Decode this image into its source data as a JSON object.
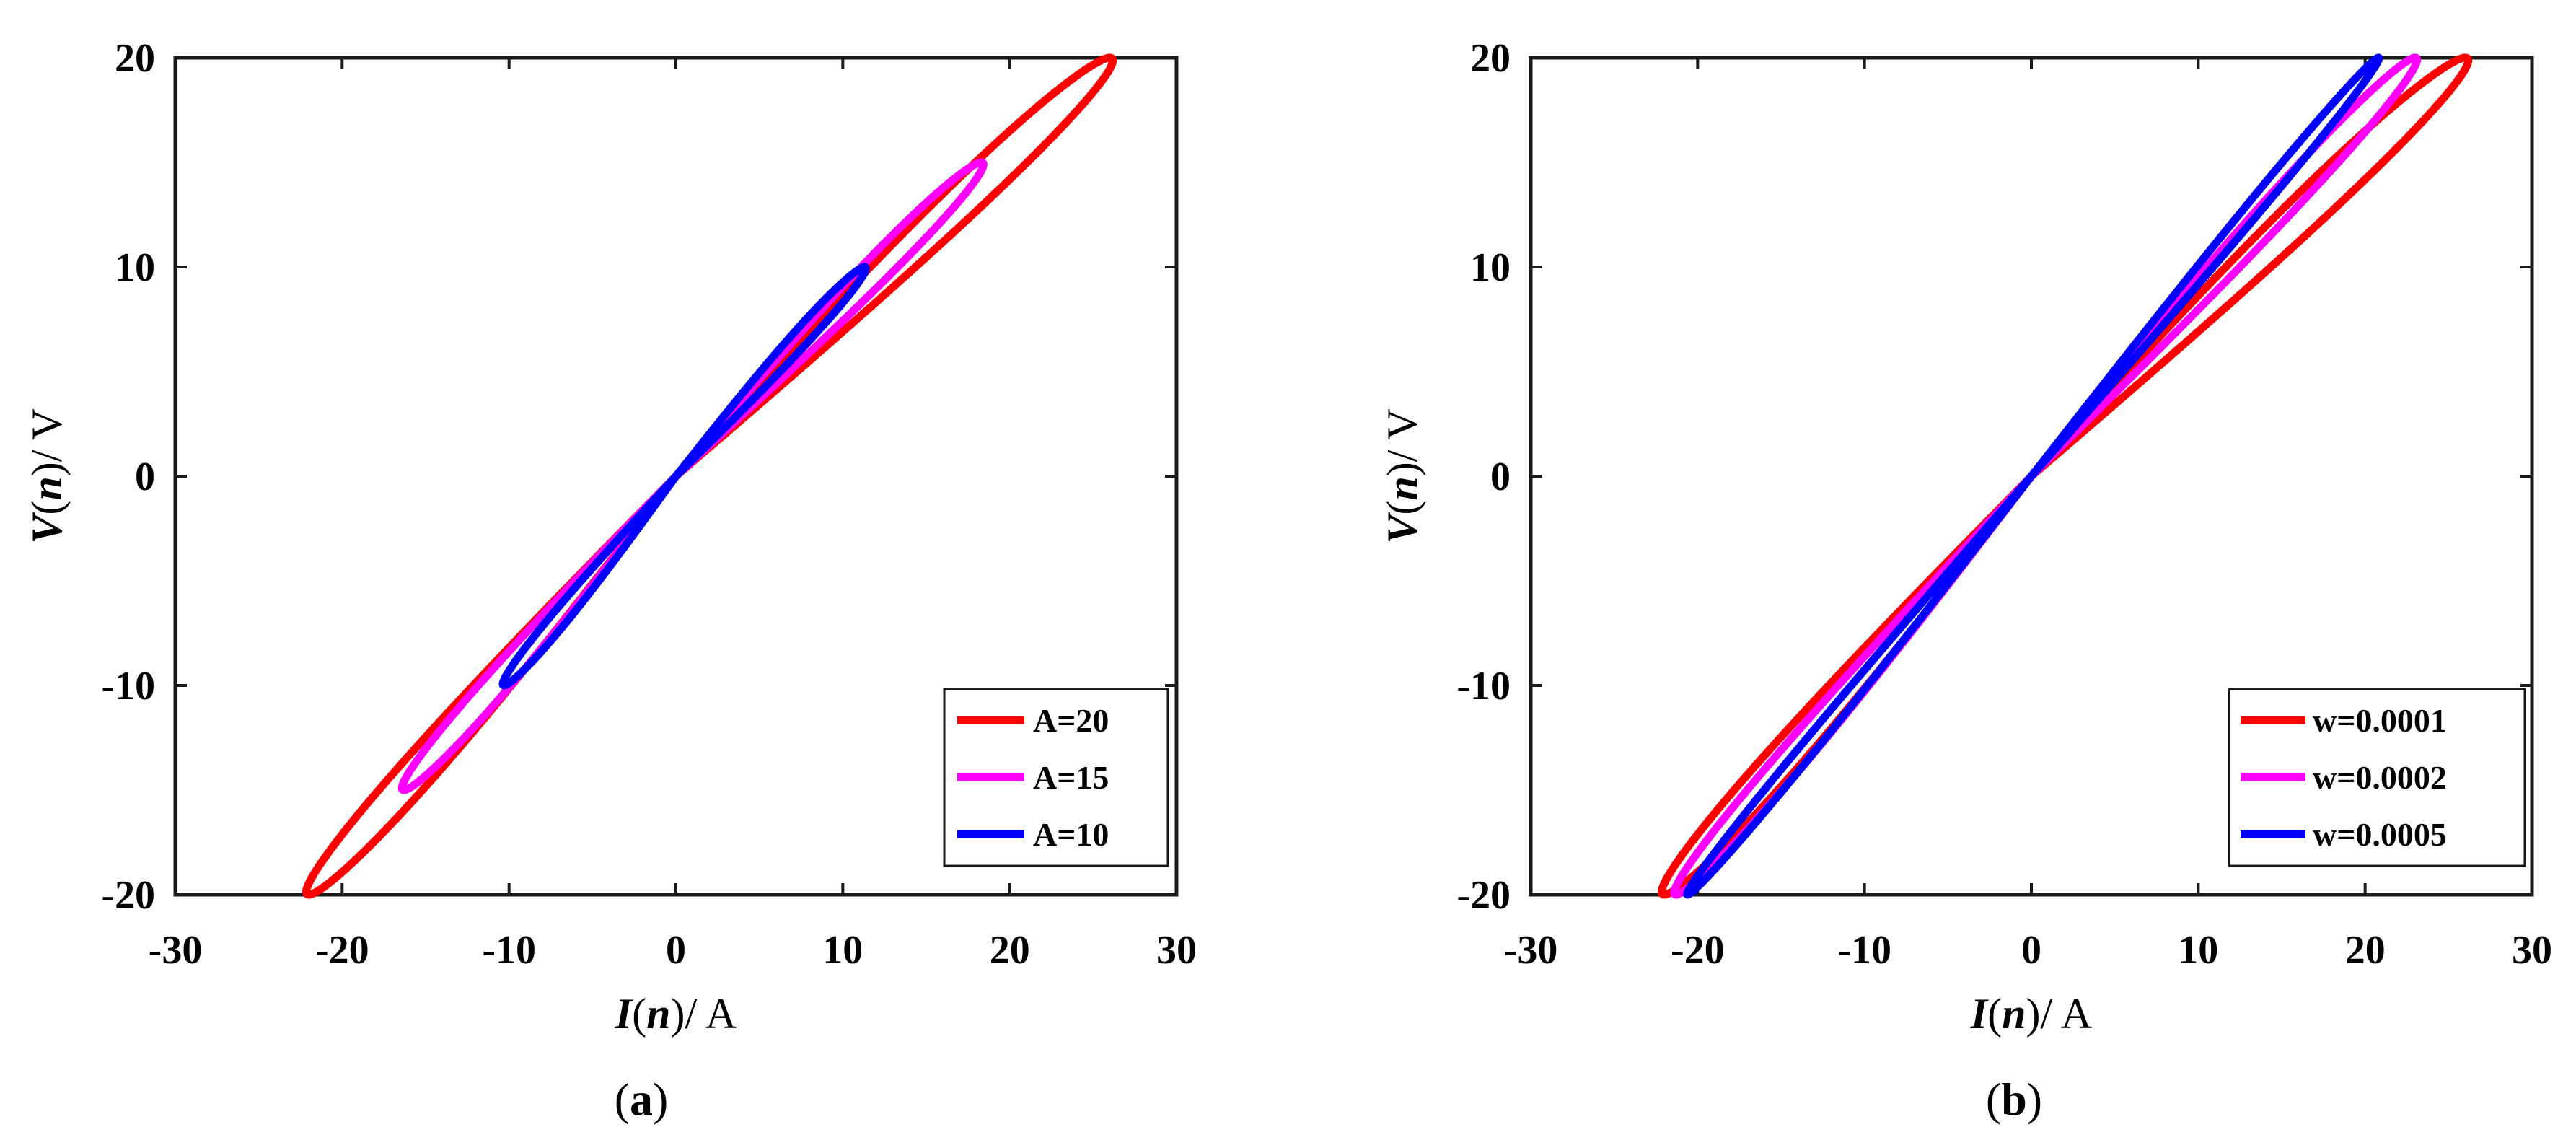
{
  "chart_data": [
    {
      "type": "line",
      "panel": "a",
      "caption": "(a)",
      "caption_letter": "a",
      "xlabel_var": "I",
      "xlabel_arg": "n",
      "xlabel_unit": "/ A",
      "ylabel_var": "V",
      "ylabel_arg": "n",
      "ylabel_unit": "/ V",
      "xlim": [
        -30,
        30
      ],
      "ylim": [
        -20,
        20
      ],
      "xticks": [
        -30,
        -20,
        -10,
        0,
        10,
        20,
        30
      ],
      "yticks": [
        -20,
        -10,
        0,
        10,
        20
      ],
      "grid": false,
      "legend_position": "bottom-right",
      "series": [
        {
          "name": "A=20",
          "color": "#ff0000",
          "x_max": 26.0,
          "y_max": 20,
          "x_min": -22.0,
          "y_min": -20,
          "loop_width": 0.12
        },
        {
          "name": "A=15",
          "color": "#ff00ff",
          "x_max": 18.3,
          "y_max": 15,
          "x_min": -16.3,
          "y_min": -15,
          "loop_width": 0.12
        },
        {
          "name": "A=10",
          "color": "#0000ff",
          "x_max": 11.3,
          "y_max": 10,
          "x_min": -10.3,
          "y_min": -10,
          "loop_width": 0.12
        }
      ]
    },
    {
      "type": "line",
      "panel": "b",
      "caption": "(b)",
      "caption_letter": "b",
      "xlabel_var": "I",
      "xlabel_arg": "n",
      "xlabel_unit": "/ A",
      "ylabel_var": "V",
      "ylabel_arg": "n",
      "ylabel_unit": "/ V",
      "xlim": [
        -30,
        30
      ],
      "ylim": [
        -20,
        20
      ],
      "xticks": [
        -30,
        -20,
        -10,
        0,
        10,
        20,
        30
      ],
      "yticks": [
        -20,
        -10,
        0,
        10,
        20
      ],
      "grid": false,
      "legend_position": "bottom-right",
      "series": [
        {
          "name": "w=0.0001",
          "color": "#ff0000",
          "x_max": 26.0,
          "y_max": 20,
          "x_min": -22.0,
          "y_min": -20,
          "loop_width": 0.12
        },
        {
          "name": "w=0.0002",
          "color": "#ff00ff",
          "x_max": 23.0,
          "y_max": 20,
          "x_min": -21.3,
          "y_min": -20,
          "loop_width": 0.1
        },
        {
          "name": "w=0.0005",
          "color": "#0000ff",
          "x_max": 20.8,
          "y_max": 20,
          "x_min": -20.6,
          "y_min": -20,
          "loop_width": 0.055
        }
      ]
    }
  ]
}
